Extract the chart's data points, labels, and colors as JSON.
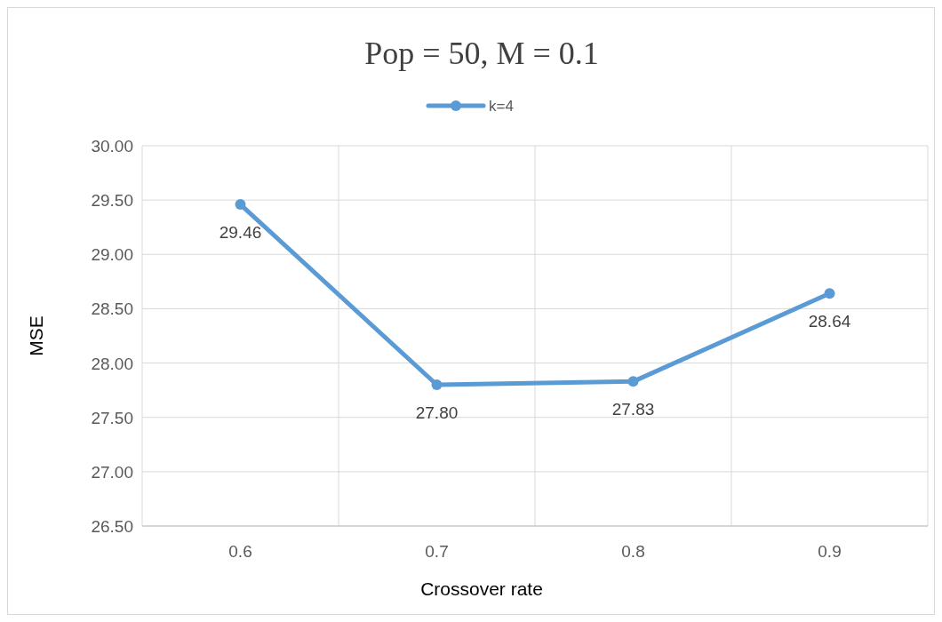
{
  "chart_data": {
    "type": "line",
    "title": "Pop = 50, M = 0.1",
    "xlabel": "Crossover rate",
    "ylabel": "MSE",
    "categories": [
      "0.6",
      "0.7",
      "0.8",
      "0.9"
    ],
    "series": [
      {
        "name": "k=4",
        "color": "#5b9bd5",
        "values": [
          29.46,
          27.8,
          27.83,
          28.64
        ]
      }
    ],
    "ylim": [
      26.5,
      30
    ],
    "yticks": [
      {
        "value": 26.5,
        "label": "26.50"
      },
      {
        "value": 27,
        "label": "27.00"
      },
      {
        "value": 27.5,
        "label": "27.50"
      },
      {
        "value": 28,
        "label": "28.00"
      },
      {
        "value": 28.5,
        "label": "28.50"
      },
      {
        "value": 29,
        "label": "29.00"
      },
      {
        "value": 29.5,
        "label": "29.50"
      },
      {
        "value": 30,
        "label": "30.00"
      }
    ],
    "value_labels": [
      "29.46",
      "27.80",
      "27.83",
      "28.64"
    ],
    "grid": true,
    "legend": "top",
    "marker": "circle",
    "line_style": "solid"
  }
}
